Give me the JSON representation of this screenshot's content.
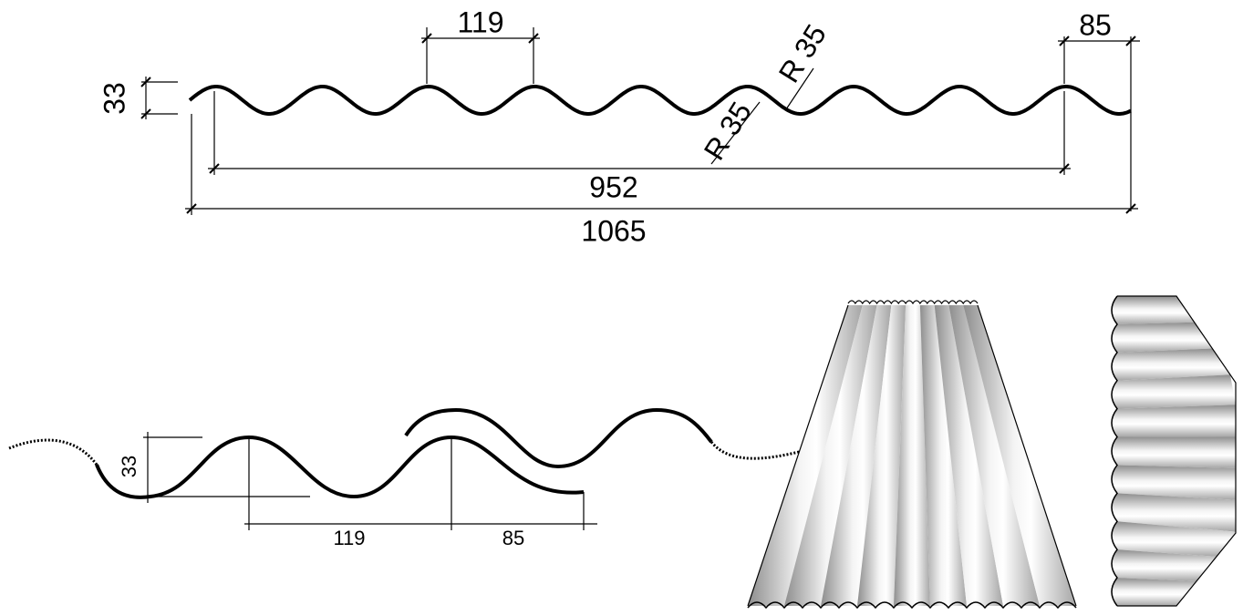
{
  "top_profile": {
    "pitch": "119",
    "overlap": "85",
    "height": "33",
    "radius_1": "R 35",
    "radius_2": "R 35",
    "cover_width": "952",
    "total_width": "1065"
  },
  "overlap_detail": {
    "height": "33",
    "pitch": "119",
    "overlap": "85"
  }
}
